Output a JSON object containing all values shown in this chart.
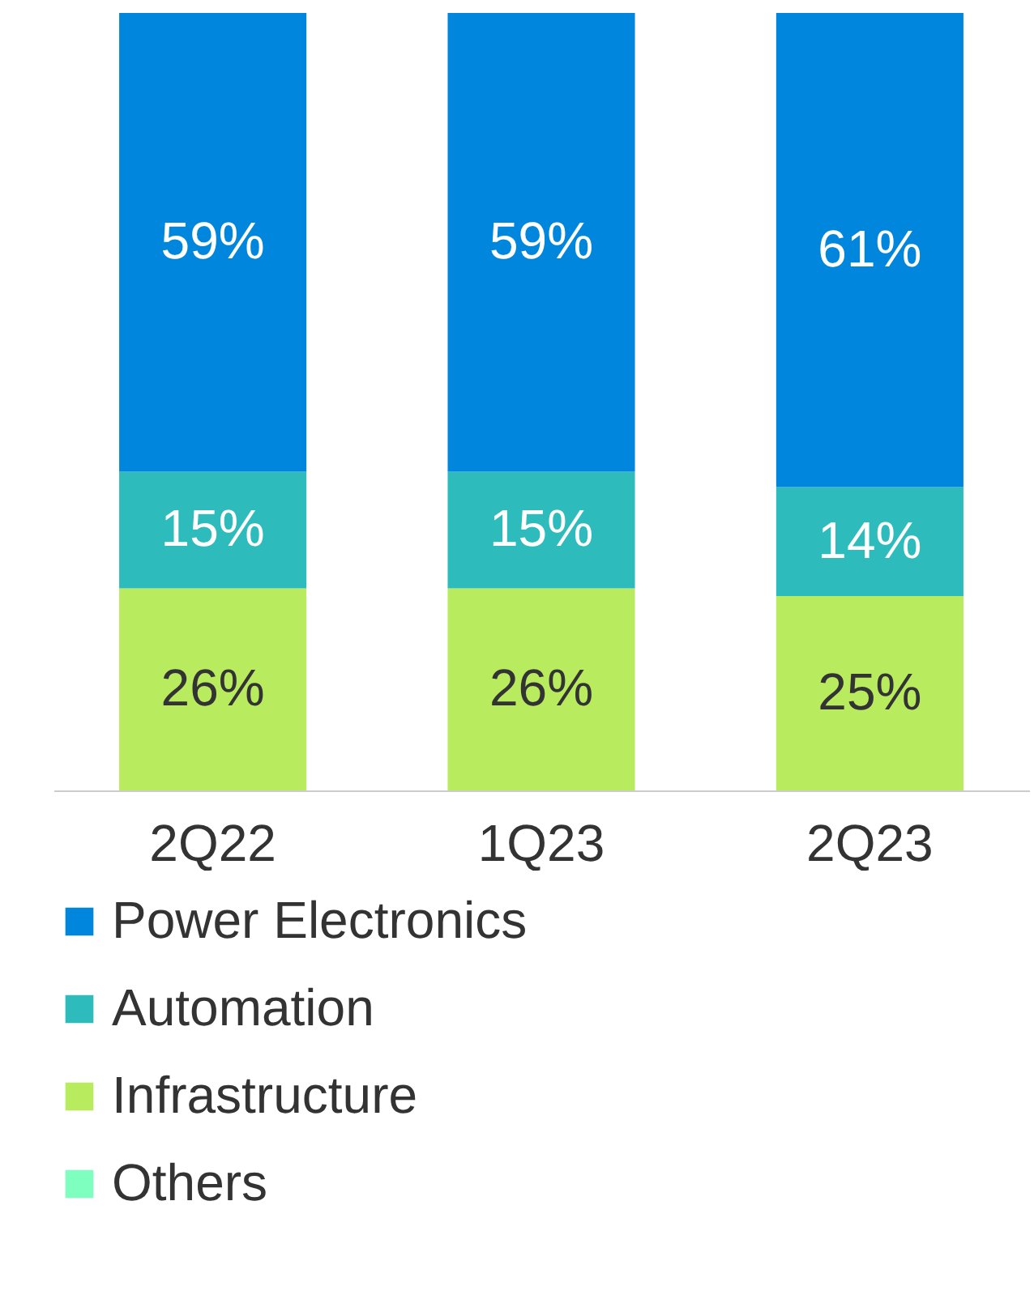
{
  "chart_data": {
    "type": "bar",
    "stacked": true,
    "categories": [
      "2Q22",
      "1Q23",
      "2Q23"
    ],
    "legend": "bottom",
    "grid": false,
    "series": [
      {
        "name": "Infrastructure",
        "color": "#b9eb5f",
        "values": [
          26,
          26,
          25
        ],
        "value_labels": [
          "26%",
          "26%",
          "25%"
        ]
      },
      {
        "name": "Automation",
        "color": "#2ebbbb",
        "values": [
          15,
          15,
          14
        ],
        "value_labels": [
          "15%",
          "15%",
          "14%"
        ]
      },
      {
        "name": "Power Electronics",
        "color": "#0086dc",
        "values": [
          59,
          59,
          61
        ],
        "value_labels": [
          "59%",
          "59%",
          "61%"
        ]
      },
      {
        "name": "Others",
        "color": "#7effc0",
        "values": [
          null,
          null,
          null
        ]
      }
    ]
  }
}
